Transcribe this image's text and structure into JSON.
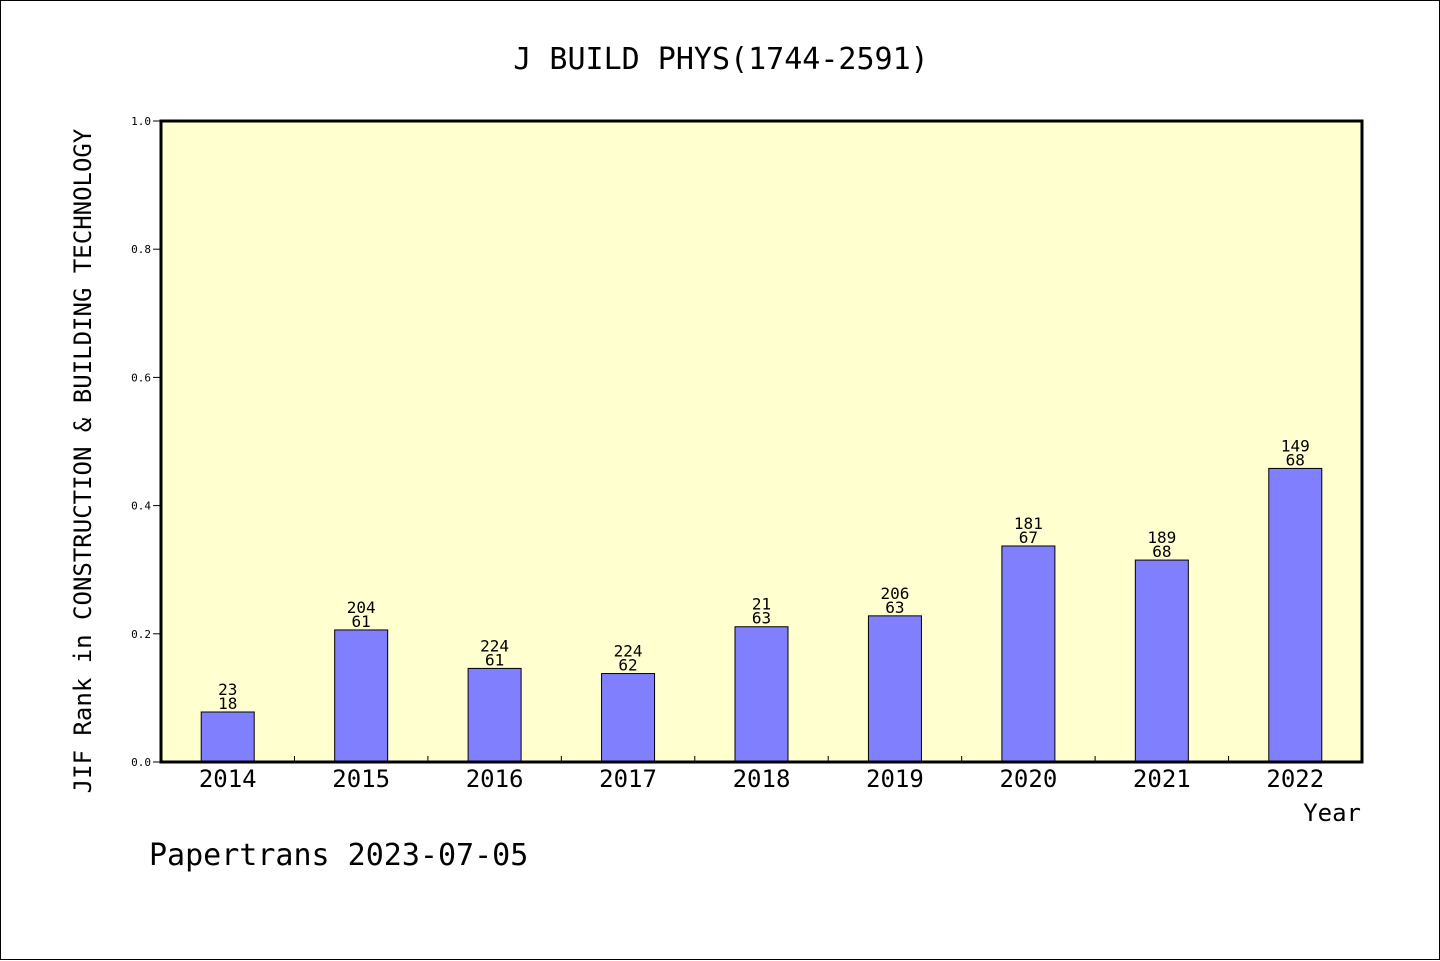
{
  "chart_data": {
    "type": "bar",
    "title": "J BUILD PHYS(1744-2591)",
    "ylabel": "JIF Rank in CONSTRUCTION & BUILDING TECHNOLOGY",
    "xlabel": "Year",
    "ylim": [
      0,
      1.0
    ],
    "yticks": [
      "0.0",
      "0.2",
      "0.4",
      "0.6",
      "0.8",
      "1.0"
    ],
    "categories": [
      "2014",
      "2015",
      "2016",
      "2017",
      "2018",
      "2019",
      "2020",
      "2021",
      "2022"
    ],
    "values": [
      0.078,
      0.206,
      0.146,
      0.138,
      0.211,
      0.228,
      0.337,
      0.315,
      0.458
    ],
    "label_top": [
      "23",
      "204",
      "224",
      "224",
      "21",
      "206",
      "181",
      "189",
      "149"
    ],
    "label_bottom": [
      "18",
      "61",
      "61",
      "62",
      "63",
      "63",
      "67",
      "68",
      "68"
    ],
    "grid": false,
    "colors": {
      "plot_background": "#ffffd0",
      "bar_fill": "#8080ff",
      "bar_stroke": "#000000"
    }
  },
  "footer": {
    "credit": "Papertrans 2023-07-05"
  }
}
